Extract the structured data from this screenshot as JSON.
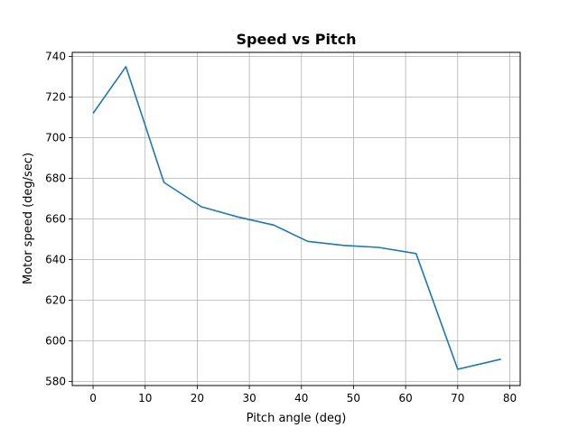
{
  "chart_data": {
    "type": "line",
    "title": "Speed vs Pitch",
    "xlabel": "Pitch angle (deg)",
    "ylabel": "Motor speed (deg/sec)",
    "xlim": [
      -4,
      82
    ],
    "ylim": [
      578,
      742
    ],
    "xticks": [
      0,
      10,
      20,
      30,
      40,
      50,
      60,
      70,
      80
    ],
    "yticks": [
      580,
      600,
      620,
      640,
      660,
      680,
      700,
      720,
      740
    ],
    "grid": true,
    "colors": {
      "line": "#1f77b4",
      "grid": "#b0b0b0",
      "axes": "#000000"
    },
    "series": [
      {
        "x": [
          0,
          6.3,
          13.6,
          20.8,
          27.8,
          34.7,
          41.2,
          48.1,
          54.8,
          62.0,
          70.0,
          78.3
        ],
        "y": [
          712,
          735,
          678,
          666,
          661,
          657,
          649,
          647,
          646,
          643,
          586,
          591
        ]
      }
    ]
  }
}
